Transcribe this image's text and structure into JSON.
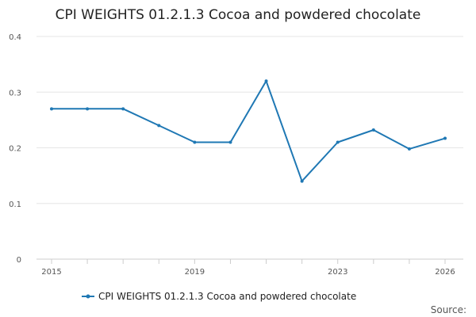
{
  "chart_data": {
    "type": "line",
    "title": "CPI WEIGHTS 01.2.1.3 Cocoa and powdered chocolate",
    "xlabel": "",
    "ylabel": "",
    "x": [
      2015,
      2016,
      2017,
      2018,
      2019,
      2020,
      2021,
      2022,
      2023,
      2024,
      2025,
      2026
    ],
    "xlim": [
      2015,
      2026
    ],
    "x_ticks": [
      2015,
      2016,
      2017,
      2018,
      2019,
      2020,
      2021,
      2022,
      2023,
      2024,
      2025,
      2026
    ],
    "x_tick_labels": [
      "2015",
      "",
      "",
      "",
      "2019",
      "",
      "",
      "",
      "2023",
      "",
      "",
      "2026"
    ],
    "ylim": [
      0,
      0.4
    ],
    "y_ticks": [
      0,
      0.1,
      0.2,
      0.3,
      0.4
    ],
    "y_tick_labels": [
      "0",
      "0.1",
      "0.2",
      "0.3",
      "0.4"
    ],
    "series": [
      {
        "name": "CPI WEIGHTS 01.2.1.3 Cocoa and powdered chocolate",
        "color": "#1f78b4",
        "values": [
          0.27,
          0.27,
          0.27,
          0.24,
          0.21,
          0.21,
          0.32,
          0.14,
          0.21,
          0.232,
          0.198,
          0.217
        ]
      }
    ],
    "grid": true,
    "legend_position": "bottom-center",
    "source_text": "Source:"
  }
}
